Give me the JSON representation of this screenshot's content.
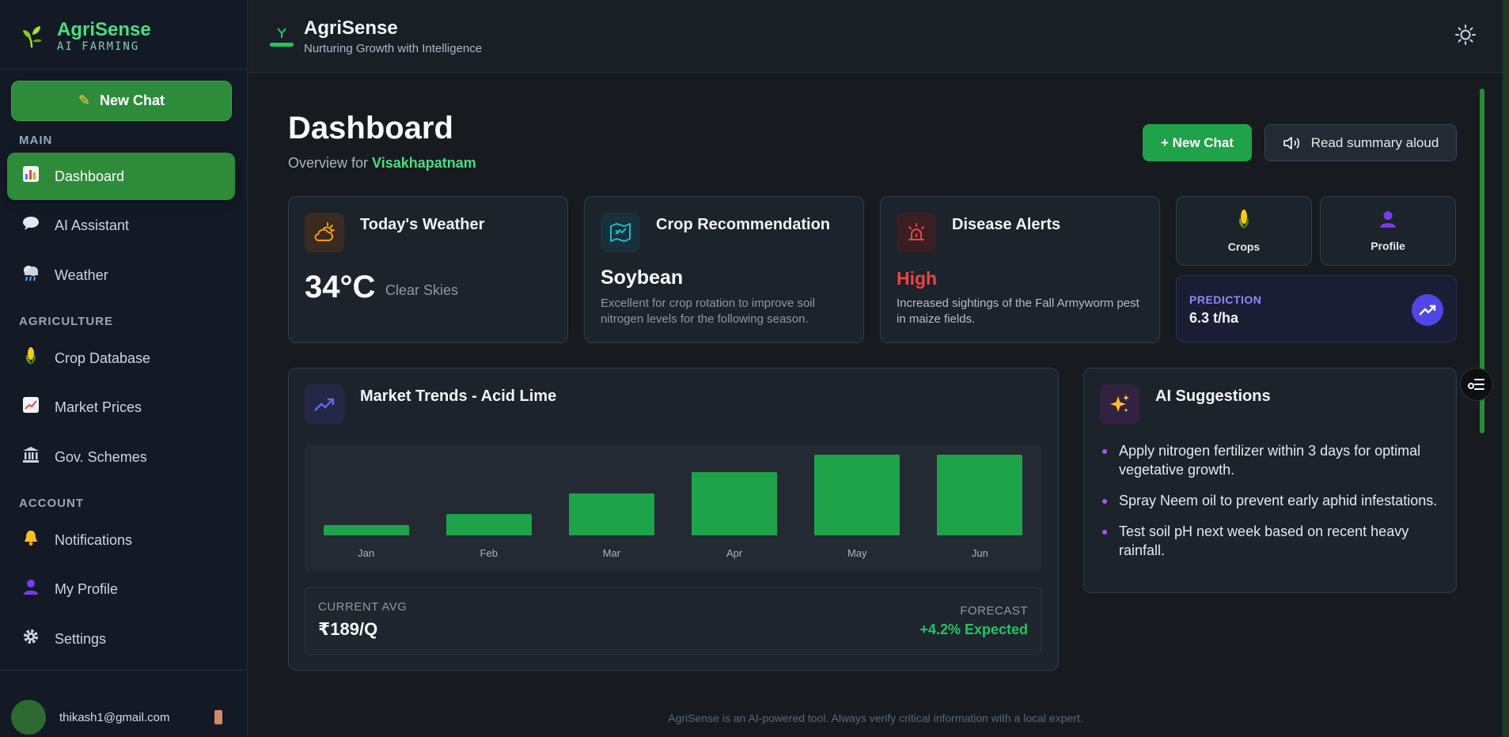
{
  "sidebar": {
    "brand_name": "AgriSense",
    "brand_sub": "AI FARMING",
    "new_chat": "New Chat",
    "sections": {
      "main": "MAIN",
      "agriculture": "AGRICULTURE",
      "account": "ACCOUNT"
    },
    "items": [
      {
        "label": "Dashboard",
        "icon": "bar-chart-icon"
      },
      {
        "label": "AI Assistant",
        "icon": "speech-bubble-icon"
      },
      {
        "label": "Weather",
        "icon": "cloud-rain-icon"
      },
      {
        "label": "Crop Database",
        "icon": "corn-icon"
      },
      {
        "label": "Market Prices",
        "icon": "trend-chart-icon"
      },
      {
        "label": "Gov. Schemes",
        "icon": "bank-icon"
      },
      {
        "label": "Notifications",
        "icon": "bell-icon"
      },
      {
        "label": "My Profile",
        "icon": "user-icon"
      },
      {
        "label": "Settings",
        "icon": "gear-icon"
      }
    ],
    "user_email": "thikash1@gmail.com"
  },
  "header": {
    "title": "AgriSense",
    "subtitle": "Nurturing Growth with Intelligence"
  },
  "page": {
    "title": "Dashboard",
    "overview_prefix": "Overview for",
    "location": "Visakhapatnam",
    "new_chat_button": "+ New Chat",
    "read_aloud_button": "Read summary aloud"
  },
  "weather": {
    "title": "Today's Weather",
    "temp": "34°C",
    "condition": "Clear Skies"
  },
  "crop": {
    "title": "Crop Recommendation",
    "value": "Soybean",
    "desc": "Excellent for crop rotation to improve soil nitrogen levels for the following season."
  },
  "disease": {
    "title": "Disease Alerts",
    "level": "High",
    "desc": "Increased sightings of the Fall Armyworm pest in maize fields."
  },
  "quick": {
    "crops": "Crops",
    "profile": "Profile"
  },
  "prediction": {
    "label": "PREDICTION",
    "value": "6.3 t/ha"
  },
  "market": {
    "title": "Market Trends - Acid Lime",
    "avg_label": "CURRENT AVG",
    "avg_value": "₹189/Q",
    "forecast_label": "FORECAST",
    "forecast_value": "+4.2% Expected"
  },
  "chart_data": {
    "type": "bar",
    "categories": [
      "Jan",
      "Feb",
      "Mar",
      "Apr",
      "May",
      "Jun"
    ],
    "values": [
      12,
      25,
      50,
      75,
      95,
      95
    ],
    "ylim": [
      0,
      100
    ],
    "color": "#1ea34a"
  },
  "suggestions": {
    "title": "AI Suggestions",
    "items": [
      "Apply nitrogen fertilizer within 3 days for optimal vegetative growth.",
      "Spray Neem oil to prevent early aphid infestations.",
      "Test soil pH next week based on recent heavy rainfall."
    ]
  },
  "footer": "AgriSense is an AI-powered tool. Always verify critical information with a local expert.",
  "colors": {
    "accent": "#2e8b3a",
    "primary_button": "#1ea34a",
    "brand_text": "#4ade80",
    "alert": "#ef4444",
    "prediction": "#4f46e5"
  }
}
